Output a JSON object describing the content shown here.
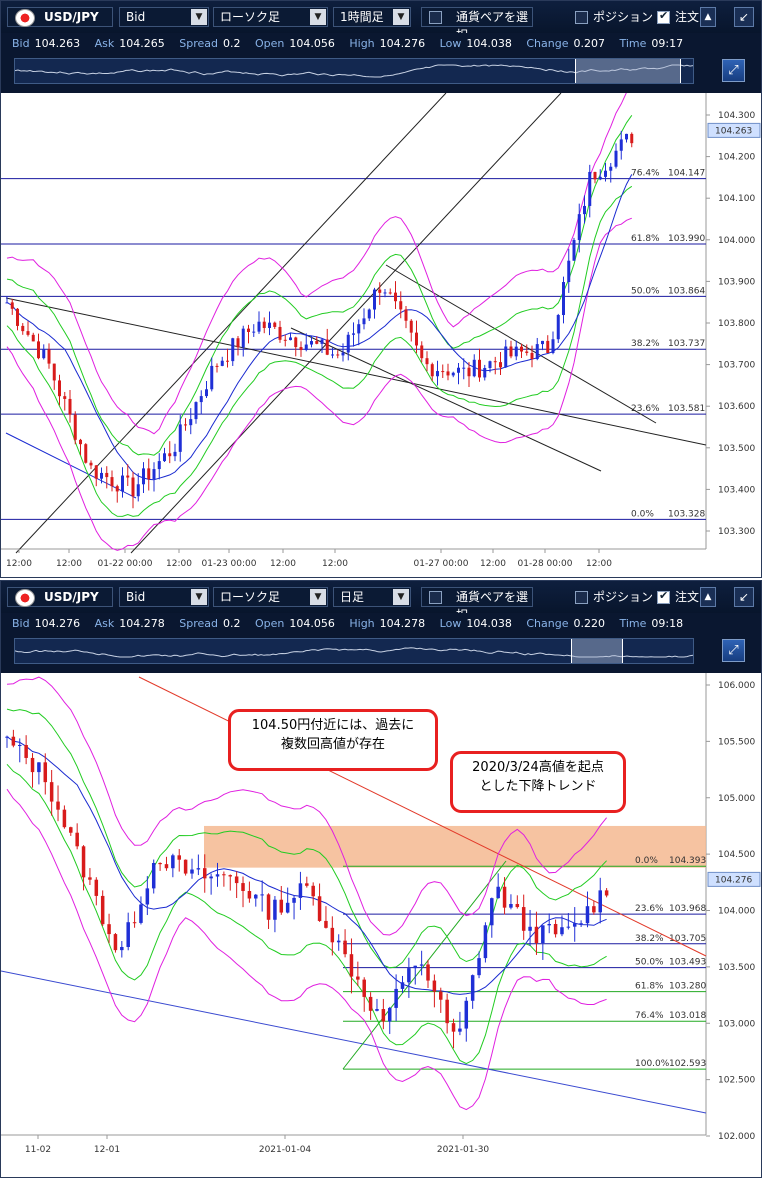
{
  "panels": [
    {
      "toolbar": {
        "pair": "USD/JPY",
        "price_type": "Bid",
        "chart_type": "ローソク足",
        "timeframe": "1時間足",
        "select_pair_label": "通貨ペアを選択",
        "position_label": "ポジション",
        "order_label": "注文"
      },
      "quote": {
        "bid_label": "Bid",
        "bid": "104.263",
        "ask_label": "Ask",
        "ask": "104.265",
        "spread_label": "Spread",
        "spread": "0.2",
        "open_label": "Open",
        "open": "104.056",
        "high_label": "High",
        "high": "104.276",
        "low_label": "Low",
        "low": "104.038",
        "change_label": "Change",
        "change": "0.207",
        "time_label": "Time",
        "time": "09:17"
      },
      "chart_data": {
        "type": "candlestick",
        "y_ticks": [
          "104.300",
          "104.200",
          "104.100",
          "104.000",
          "103.900",
          "103.800",
          "103.700",
          "103.600",
          "103.500",
          "103.400",
          "103.300"
        ],
        "x_ticks": [
          "12:00",
          "12:00",
          "01-22 00:00",
          "12:00",
          "01-23 00:00",
          "12:00",
          "12:00",
          "01-27 00:00",
          "12:00",
          "01-28 00:00",
          "12:00"
        ],
        "current_price": "104.263",
        "fibonacci": [
          {
            "label": "76.4%",
            "value": "104.147"
          },
          {
            "label": "61.8%",
            "value": "103.990"
          },
          {
            "label": "50.0%",
            "value": "103.864"
          },
          {
            "label": "38.2%",
            "value": "103.737"
          },
          {
            "label": "23.6%",
            "value": "103.581"
          },
          {
            "label": "0.0%",
            "value": "103.328"
          }
        ]
      }
    },
    {
      "toolbar": {
        "pair": "USD/JPY",
        "price_type": "Bid",
        "chart_type": "ローソク足",
        "timeframe": "日足",
        "select_pair_label": "通貨ペアを選択",
        "position_label": "ポジション",
        "order_label": "注文"
      },
      "quote": {
        "bid_label": "Bid",
        "bid": "104.276",
        "ask_label": "Ask",
        "ask": "104.278",
        "spread_label": "Spread",
        "spread": "0.2",
        "open_label": "Open",
        "open": "104.056",
        "high_label": "High",
        "high": "104.278",
        "low_label": "Low",
        "low": "104.038",
        "change_label": "Change",
        "change": "0.220",
        "time_label": "Time",
        "time": "09:18"
      },
      "chart_data": {
        "type": "candlestick",
        "y_ticks": [
          "106.000",
          "105.500",
          "105.000",
          "104.500",
          "104.000",
          "103.500",
          "103.000",
          "102.500",
          "102.000"
        ],
        "x_ticks": [
          "11-02",
          "12-01",
          "2021-01-04",
          "2021-01-30"
        ],
        "current_price": "104.276",
        "fibonacci": [
          {
            "label": "0.0%",
            "value": "104.393"
          },
          {
            "label": "23.6%",
            "value": "103.968"
          },
          {
            "label": "38.2%",
            "value": "103.705"
          },
          {
            "label": "50.0%",
            "value": "103.493"
          },
          {
            "label": "61.8%",
            "value": "103.280"
          },
          {
            "label": "76.4%",
            "value": "103.018"
          },
          {
            "label": "100.0%",
            "value": "102.593"
          }
        ],
        "annotations": [
          {
            "line1": "104.50円付近には、過去に",
            "line2": "複数回高値が存在"
          },
          {
            "line1": "2020/3/24高値を起点",
            "line2": "とした下降トレンド"
          }
        ]
      }
    }
  ],
  "colors": {
    "bull": "#1f2fd6",
    "bear": "#d81b1b",
    "fib": "#1a1aa0",
    "fib2": "#22aa22",
    "band": "#e020e0",
    "ma": "#22cc22",
    "trend": "#e23a2a",
    "zone": "#f5b890"
  }
}
